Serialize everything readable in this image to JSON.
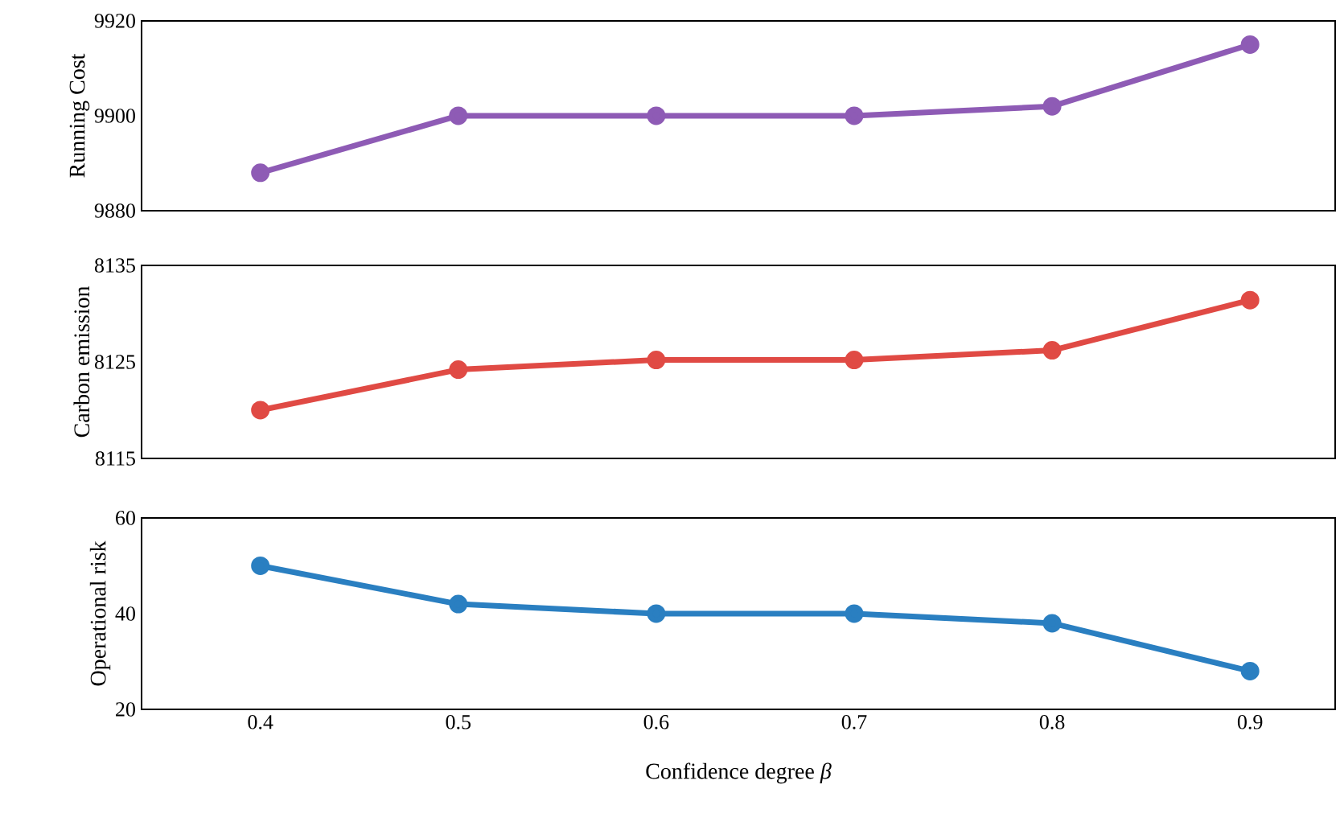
{
  "chart_data": [
    {
      "type": "line",
      "x": [
        0.4,
        0.5,
        0.6,
        0.7,
        0.8,
        0.9
      ],
      "ylabel": "Running Cost",
      "series": [
        {
          "color": "#8e5bb5",
          "values": [
            9888,
            9900,
            9900,
            9900,
            9902,
            9915
          ]
        }
      ],
      "xlim": [
        0.34,
        0.943
      ],
      "xticks": [
        0.4,
        0.5,
        0.6,
        0.7,
        0.8,
        0.9
      ],
      "ylim": [
        9880,
        9920
      ],
      "yticks": [
        9880,
        9900,
        9920
      ],
      "tick_labels": "y",
      "marker": "circle",
      "line_style": "solid"
    },
    {
      "type": "line",
      "x": [
        0.4,
        0.5,
        0.6,
        0.7,
        0.8,
        0.9
      ],
      "ylabel": "Carbon emission",
      "series": [
        {
          "color": "#e04a44",
          "values": [
            8120,
            8124.2,
            8125.2,
            8125.2,
            8126.2,
            8131.4
          ]
        }
      ],
      "xlim": [
        0.34,
        0.943
      ],
      "xticks": [
        0.4,
        0.5,
        0.6,
        0.7,
        0.8,
        0.9
      ],
      "ylim": [
        8115,
        8135
      ],
      "yticks": [
        8115,
        8125,
        8135
      ],
      "tick_labels": "y",
      "marker": "circle",
      "line_style": "solid"
    },
    {
      "type": "line",
      "x": [
        0.4,
        0.5,
        0.6,
        0.7,
        0.8,
        0.9
      ],
      "xlabel": "Confidence degree *β*",
      "ylabel": "Operational risk",
      "series": [
        {
          "color": "#2a7fc1",
          "values": [
            50,
            42,
            40,
            40,
            38,
            28
          ]
        }
      ],
      "xlim": [
        0.34,
        0.943
      ],
      "xticks": [
        0.4,
        0.5,
        0.6,
        0.7,
        0.8,
        0.9
      ],
      "ylim": [
        20,
        60
      ],
      "yticks": [
        20,
        40,
        60
      ],
      "marker": "circle",
      "line_style": "solid"
    }
  ]
}
